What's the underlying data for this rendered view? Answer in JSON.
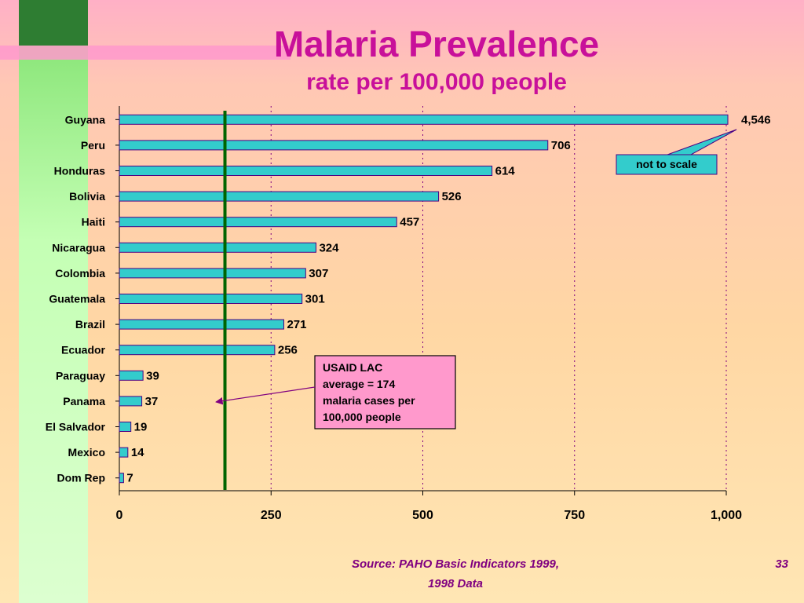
{
  "slide": {
    "title": "Malaria Prevalence",
    "subtitle": "rate per 100,000 people",
    "source_line1": "Source:  PAHO Basic Indicators 1999,",
    "source_line2": "1998 Data",
    "page_number": "33"
  },
  "colors": {
    "bar_fill": "#33cccc",
    "bar_stroke": "#4b0082",
    "title": "#c8109a",
    "average_line": "#006400",
    "callout_fill": "#ff99cc",
    "footer_text": "#800080"
  },
  "chart_data": {
    "type": "bar",
    "orientation": "horizontal",
    "categories": [
      "Guyana",
      "Peru",
      "Honduras",
      "Bolivia",
      "Haiti",
      "Nicaragua",
      "Colombia",
      "Guatemala",
      "Brazil",
      "Ecuador",
      "Paraguay",
      "Panama",
      "El Salvador",
      "Mexico",
      "Dom Rep"
    ],
    "values": [
      4546,
      706,
      614,
      526,
      457,
      324,
      307,
      301,
      271,
      256,
      39,
      37,
      19,
      14,
      7
    ],
    "value_labels": [
      "4,546",
      "706",
      "614",
      "526",
      "457",
      "324",
      "307",
      "301",
      "271",
      "256",
      "39",
      "37",
      "19",
      "14",
      "7"
    ],
    "xlim": [
      0,
      1000
    ],
    "x_ticks": [
      0,
      250,
      500,
      750,
      1000
    ],
    "x_tick_labels": [
      "0",
      "250",
      "500",
      "750",
      "1,000"
    ],
    "grid": "vertical dotted at ticks",
    "truncated_bars": [
      "Guyana"
    ],
    "reference_line": {
      "value": 174,
      "annotation": [
        "USAID LAC",
        "average = 174",
        "malaria cases per",
        "100,000 people"
      ]
    },
    "scale_note": "not to scale"
  }
}
